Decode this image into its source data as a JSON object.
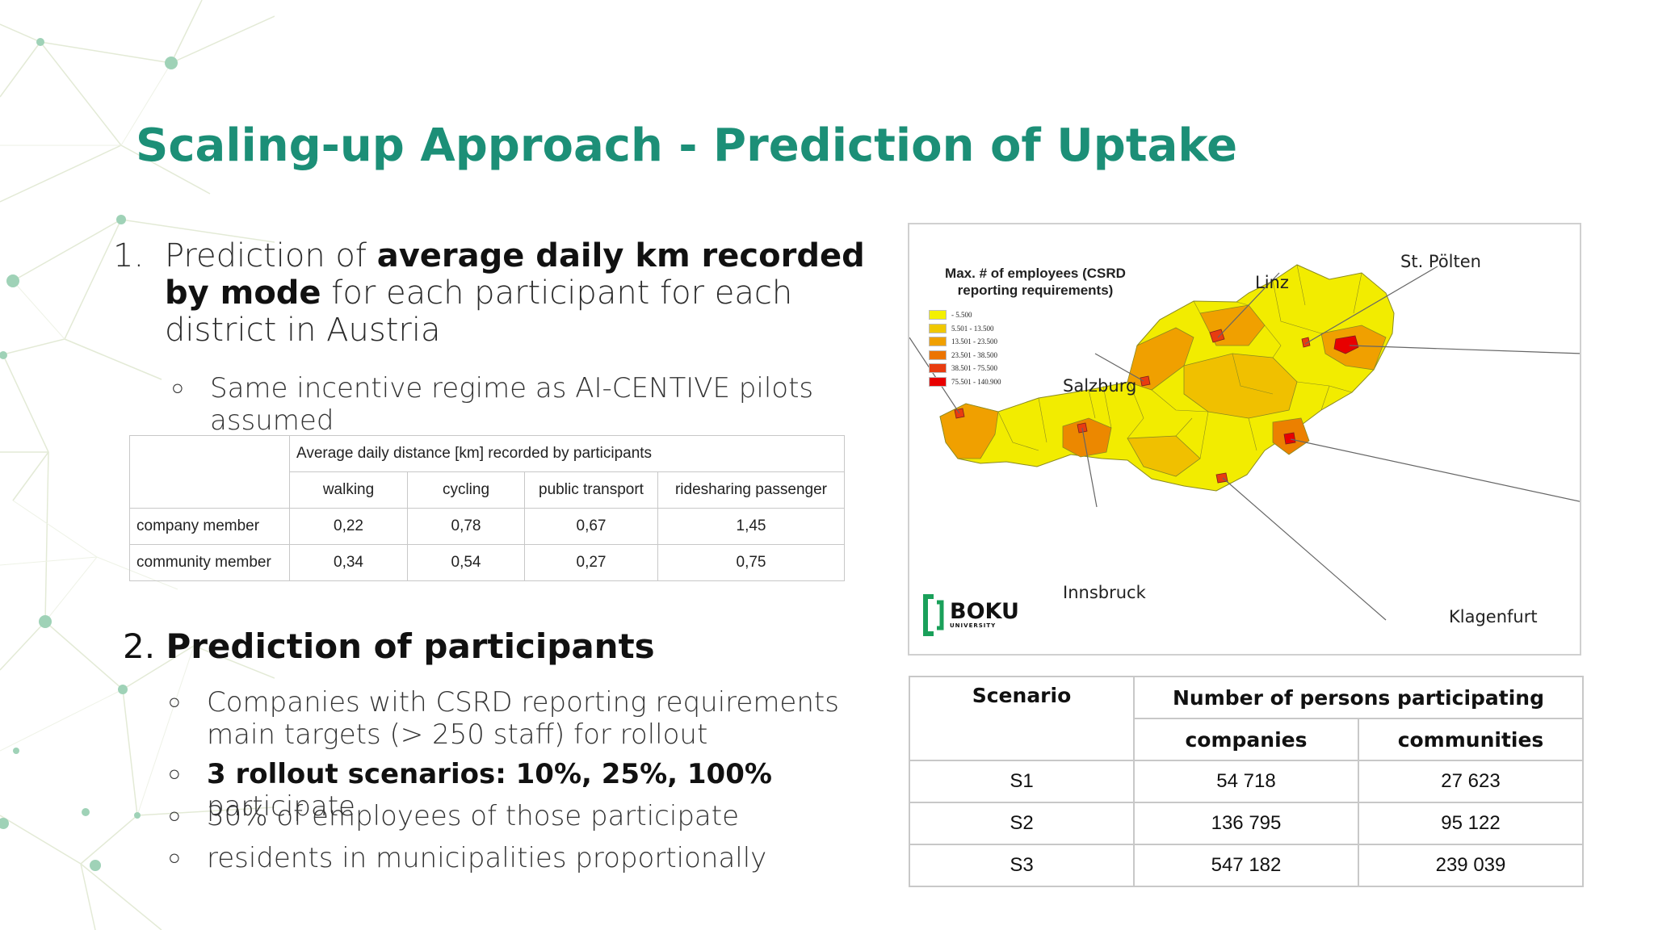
{
  "slide": {
    "title": "Scaling-up Approach - Prediction of Uptake",
    "accent_color": "#1c8f77"
  },
  "section1": {
    "number": "1.",
    "text_pre": "Prediction of ",
    "text_bold": "average daily km recorded by mode",
    "text_post": " for each participant for each district in Austria",
    "bullet": "Same incentive regime as AI-CENTIVE pilots assumed"
  },
  "distance_table": {
    "header": "Average daily distance [km] recorded by participants",
    "columns": [
      "walking",
      "cycling",
      "public transport",
      "ridesharing passenger"
    ],
    "rows": [
      {
        "label": "company member",
        "values": [
          "0,22",
          "0,78",
          "0,67",
          "1,45"
        ]
      },
      {
        "label": "community member",
        "values": [
          "0,34",
          "0,54",
          "0,27",
          "0,75"
        ]
      }
    ]
  },
  "section2": {
    "number": "2.",
    "heading": "Prediction of participants",
    "bullets": [
      {
        "bold": "",
        "text": "Companies with CSRD reporting requirements main targets (> 250 staff) for rollout"
      },
      {
        "bold": "3 rollout scenarios: 10%, 25%, 100%",
        "text": " participate"
      },
      {
        "bold": "",
        "text": "30% of employees of those participate"
      },
      {
        "bold": "",
        "text": "residents in municipalities proportionally"
      }
    ]
  },
  "map": {
    "legend_title": "Max. # of employees (CSRD reporting requirements)",
    "legend": [
      {
        "label": "- 5.500",
        "color": "#f4f000"
      },
      {
        "label": "5.501 - 13.500",
        "color": "#f0c800"
      },
      {
        "label": "13.501 - 23.500",
        "color": "#f0a000"
      },
      {
        "label": "23.501 - 38.500",
        "color": "#ec7400"
      },
      {
        "label": "38.501 - 75.500",
        "color": "#e83c10"
      },
      {
        "label": "75.501 - 140.900",
        "color": "#e80000"
      }
    ],
    "cities": {
      "linz": "Linz",
      "st_poelten": "St. Pölten",
      "salzburg": "Salzburg",
      "innsbruck": "Innsbruck",
      "klagenfurt": "Klagenfurt"
    },
    "logo_name": "BOKU",
    "logo_sub": "UNIVERSITY",
    "logo_color": "#1aa05a"
  },
  "scenario_table": {
    "col_scenario": "Scenario",
    "col_group": "Number of persons participating",
    "sub_cols": [
      "companies",
      "communities"
    ],
    "rows": [
      {
        "scenario": "S1",
        "companies": "54 718",
        "communities": "27 623"
      },
      {
        "scenario": "S2",
        "companies": "136 795",
        "communities": "95 122"
      },
      {
        "scenario": "S3",
        "companies": "547 182",
        "communities": "239 039"
      }
    ]
  }
}
